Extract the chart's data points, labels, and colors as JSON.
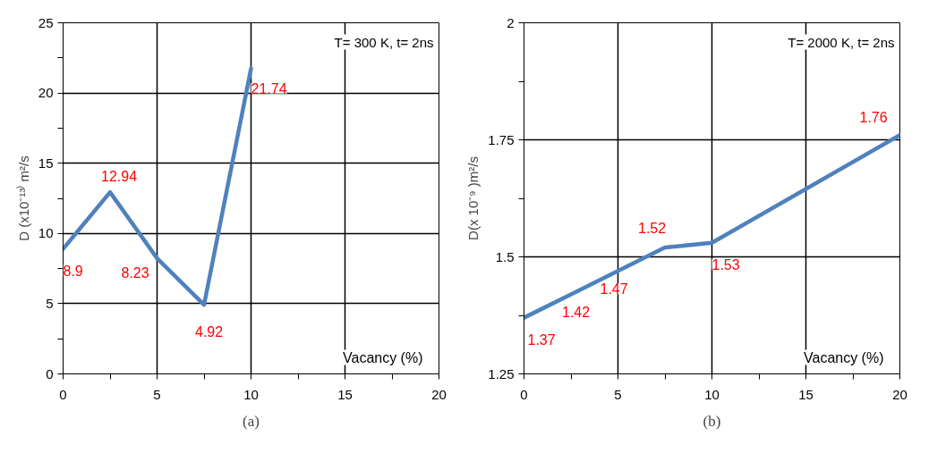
{
  "chart_data": [
    {
      "type": "line",
      "xlabel": "Vacancy (%)",
      "ylabel": "D (x10⁻¹³⁾ m²/s",
      "x": [
        0,
        2.5,
        5,
        7.5,
        10
      ],
      "series": [
        {
          "color": "#4f81bd",
          "values": [
            8.9,
            12.94,
            8.23,
            4.92,
            21.74
          ]
        }
      ],
      "xlim": [
        0,
        20
      ],
      "ylim": [
        0,
        25
      ],
      "xticks": [
        0,
        {
          "value": 2.5,
          "label": null
        },
        5,
        {
          "value": 7.5,
          "label": null
        },
        10,
        {
          "value": 12.5,
          "label": null
        },
        15,
        {
          "value": 17.5,
          "label": null
        },
        20
      ],
      "yticks": [
        0,
        {
          "value": 2.5,
          "label": null
        },
        5,
        {
          "value": 7.5,
          "label": null
        },
        10,
        {
          "value": 12.5,
          "label": null
        },
        15,
        {
          "value": 17.5,
          "label": null
        },
        20,
        {
          "value": 22.5,
          "label": null
        },
        25
      ],
      "grid": true,
      "marker": "none",
      "line_style": "solid",
      "data_labels": true,
      "annotations": [
        "T= 300 K, t= 2ns",
        "(a)"
      ]
    },
    {
      "type": "line",
      "xlabel": "Vacancy (%)",
      "ylabel": "D(x 10⁻⁹ )m²/s",
      "x": [
        0,
        2.5,
        5,
        7.5,
        10,
        20
      ],
      "series": [
        {
          "color": "#4f81bd",
          "values": [
            1.37,
            1.42,
            1.47,
            1.52,
            1.53,
            1.76
          ]
        }
      ],
      "xlim": [
        0,
        20
      ],
      "ylim": [
        1.25,
        2
      ],
      "xticks": [
        0,
        {
          "value": 2.5,
          "label": null
        },
        5,
        {
          "value": 7.5,
          "label": null
        },
        10,
        {
          "value": 12.5,
          "label": null
        },
        15,
        {
          "value": 17.5,
          "label": null
        },
        20
      ],
      "yticks": [
        1.25,
        {
          "value": 1.375,
          "label": null
        },
        1.5,
        {
          "value": 1.625,
          "label": null
        },
        1.75,
        {
          "value": 1.875,
          "label": null
        },
        2
      ],
      "grid": true,
      "marker": "none",
      "line_style": "solid",
      "data_labels": true,
      "annotations": [
        "T= 2000 K, t= 2ns",
        "(b)"
      ]
    }
  ]
}
